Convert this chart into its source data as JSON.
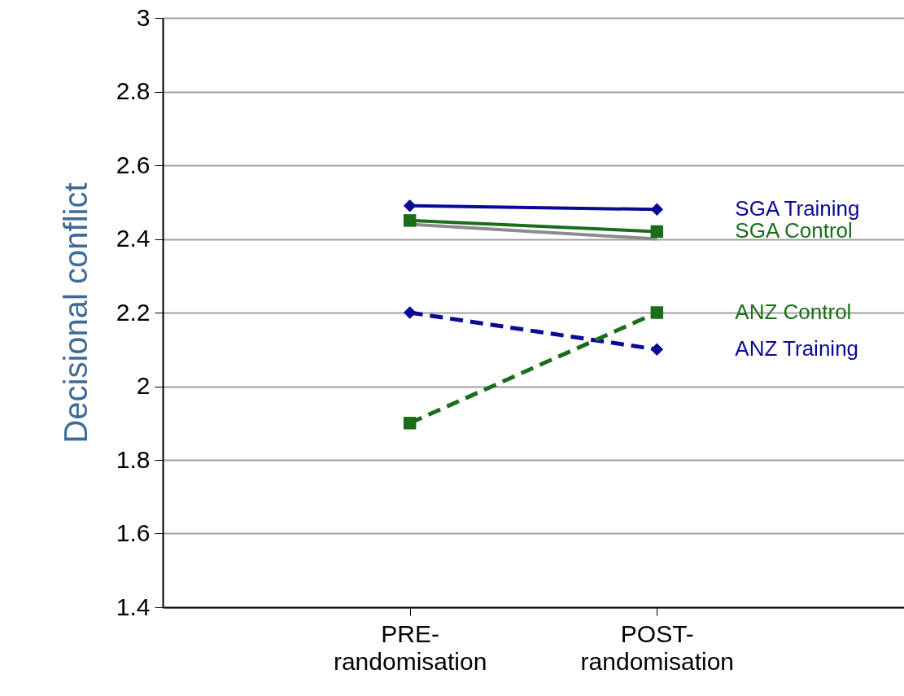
{
  "chart_data": {
    "type": "line",
    "ylabel": "Decisional conflict",
    "categories": [
      "PRE-randomisation",
      "POST-randomisation"
    ],
    "series": [
      {
        "color": "#8c8c8c",
        "values": [
          2.44,
          2.4
        ],
        "marker": "none",
        "line_style": "solid"
      },
      {
        "name": "SGA Control",
        "color": "#1a6e1a",
        "values": [
          2.45,
          2.42
        ],
        "marker": "square",
        "line_style": "solid"
      },
      {
        "name": "SGA Training",
        "color": "#0a0a96",
        "values": [
          2.49,
          2.48
        ],
        "marker": "diamond",
        "line_style": "solid"
      },
      {
        "name": "ANZ Training",
        "color": "#0a0a96",
        "values": [
          2.2,
          2.1
        ],
        "marker": "diamond",
        "line_style": "dashed"
      },
      {
        "name": "ANZ Control",
        "color": "#1a6e1a",
        "values": [
          1.9,
          2.2
        ],
        "marker": "square",
        "line_style": "dashed"
      }
    ],
    "ylim": [
      1.4,
      3
    ],
    "yticks": [
      1.4,
      1.6,
      1.8,
      2,
      2.2,
      2.4,
      2.6,
      2.8,
      3
    ],
    "grid": "y",
    "legend": false
  }
}
